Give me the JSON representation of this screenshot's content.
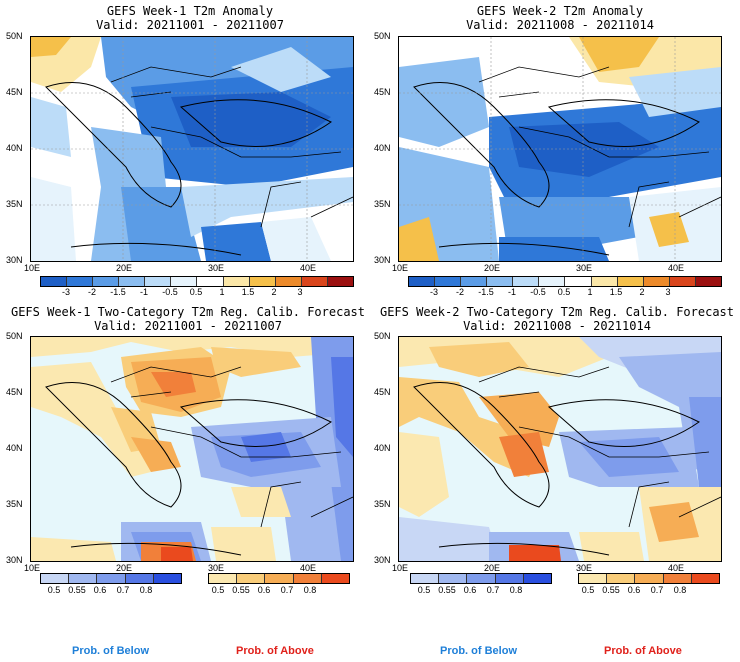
{
  "panels": [
    {
      "title": "GEFS Week-1 T2m Anomaly",
      "valid": "Valid: 20211001 - 20211007",
      "kind": "anom"
    },
    {
      "title": "GEFS Week-2 T2m Anomaly",
      "valid": "Valid: 20211008 - 20211014",
      "kind": "anom"
    },
    {
      "title": "GEFS Week-1 Two-Category T2m Reg. Calib. Forecast",
      "valid": "Valid: 20211001 - 20211007",
      "kind": "prob"
    },
    {
      "title": "GEFS Week-2 Two-Category T2m Reg. Calib. Forecast",
      "valid": "Valid: 20211008 - 20211014",
      "kind": "prob"
    }
  ],
  "axes": {
    "lat_labels": [
      "50N",
      "45N",
      "40N",
      "35N",
      "30N"
    ],
    "lon_labels": [
      "10E",
      "20E",
      "30E",
      "40E"
    ]
  },
  "anomaly_colorbar": {
    "labels": [
      "-3",
      "-2",
      "-1.5",
      "-1",
      "-0.5",
      "0.5",
      "1",
      "1.5",
      "2",
      "3"
    ],
    "colors": [
      "#1e5fc6",
      "#2f78d8",
      "#5b9ce6",
      "#8bbdf0",
      "#bcdcf8",
      "#e6f3fc",
      "#ffffff",
      "#fbe7a8",
      "#f5c04a",
      "#ec8a2a",
      "#d9451c",
      "#9b1010"
    ]
  },
  "prob_colorbar": {
    "below_labels": [
      "0.5",
      "0.55",
      "0.6",
      "0.7",
      "0.8"
    ],
    "above_labels": [
      "0.5",
      "0.55",
      "0.6",
      "0.7",
      "0.8"
    ],
    "below_colors": [
      "#c8d7f5",
      "#a0b8f0",
      "#7e9cec",
      "#5577e6",
      "#2a4fe0"
    ],
    "above_colors": [
      "#fbe8b0",
      "#f9cd7a",
      "#f6ad55",
      "#f1803a",
      "#ea4a1e"
    ],
    "below_label": "Prob. of Below",
    "above_label": "Prob. of Above",
    "below_label_color": "#1e7fd8",
    "above_label_color": "#e0211b"
  }
}
